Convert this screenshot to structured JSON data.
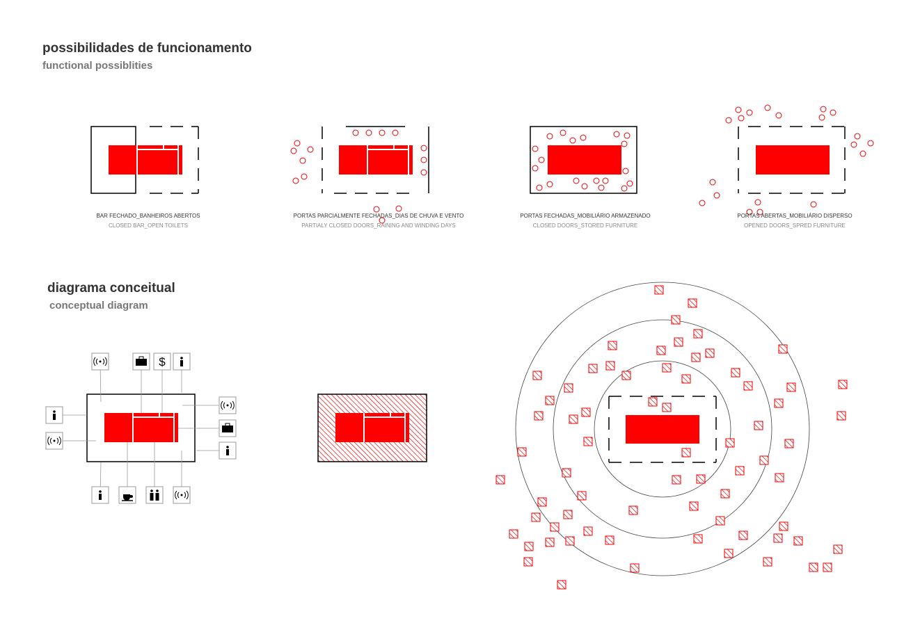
{
  "header": {
    "title": "possibilidades de funcionamento",
    "subtitle": "functional possiblities"
  },
  "scenarios": [
    {
      "label": "BAR FECHADO_BANHEIROS ABERTOS",
      "sublabel": "CLOSED BAR_OPEN TOILETS"
    },
    {
      "label": "PORTAS PARCIALMENTE FECHADAS_DIAS DE CHUVA E VENTO",
      "sublabel": "PARTIALY CLOSED DOORS_RAINING AND WINDING DAYS"
    },
    {
      "label": "PORTAS FECHADAS_MOBILIÁRIO ARMAZENADO",
      "sublabel": "CLOSED DOORS_STORED FURNITURE"
    },
    {
      "label": "PORTAS ABERTAS_MOBILIÁRIO DISPERSO",
      "sublabel": "OPENED DOORS_SPRED FURNITURE"
    }
  ],
  "diagram": {
    "title": "diagrama conceitual",
    "subtitle": "conceptual diagram",
    "icons": {
      "dollar": "$"
    }
  }
}
